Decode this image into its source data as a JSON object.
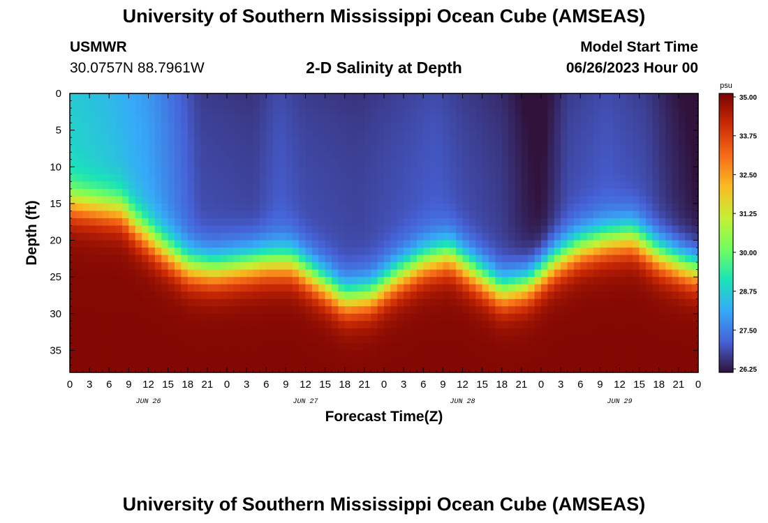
{
  "header": {
    "title": "University of Southern Mississippi Ocean Cube (AMSEAS)",
    "station": "USMWR",
    "coords": "30.0757N  88.7961W",
    "plot_title": "2-D Salinity at Depth",
    "model_label": "Model Start Time",
    "model_start": "06/26/2023 Hour 00"
  },
  "footer": {
    "title": "University of Southern Mississippi Ocean Cube (AMSEAS)"
  },
  "chart_data": {
    "type": "heatmap",
    "title": "2-D Salinity at Depth",
    "xlabel": "Forecast Time(Z)",
    "ylabel": "Depth (ft)",
    "x_range_hours": [
      0,
      96
    ],
    "y_range_ft": [
      0,
      38
    ],
    "x_tick_labels": [
      "0",
      "3",
      "6",
      "9",
      "12",
      "15",
      "18",
      "21",
      "0",
      "3",
      "6",
      "9",
      "12",
      "15",
      "18",
      "21",
      "0",
      "3",
      "6",
      "9",
      "12",
      "15",
      "18",
      "21",
      "0",
      "3",
      "6",
      "9",
      "12",
      "15",
      "18",
      "21",
      "0"
    ],
    "y_ticks": [
      0,
      5,
      10,
      15,
      20,
      25,
      30,
      35
    ],
    "day_labels": [
      {
        "label": "JUN 26",
        "hour": 12
      },
      {
        "label": "JUN 27",
        "hour": 36
      },
      {
        "label": "JUN 28",
        "hour": 60
      },
      {
        "label": "JUN 29",
        "hour": 84
      }
    ],
    "colorbar": {
      "unit": "psu",
      "min": 26.25,
      "max": 35.0,
      "ticks": [
        "35.00",
        "33.75",
        "32.50",
        "31.25",
        "30.00",
        "28.75",
        "27.50",
        "26.25"
      ],
      "colors": [
        "#30123b",
        "#4662d7",
        "#36aaf9",
        "#1ae4b6",
        "#72fe5e",
        "#c7ef34",
        "#fabb21",
        "#f66b19",
        "#cb2a04",
        "#7a0403"
      ]
    },
    "halocline_depth_ft": [
      [
        0,
        15
      ],
      [
        4,
        15.5
      ],
      [
        8,
        16
      ],
      [
        10,
        18
      ],
      [
        14,
        21
      ],
      [
        18,
        23.5
      ],
      [
        22,
        24
      ],
      [
        26,
        23.5
      ],
      [
        30,
        23
      ],
      [
        34,
        23
      ],
      [
        38,
        25.5
      ],
      [
        42,
        28
      ],
      [
        46,
        27.5
      ],
      [
        50,
        25
      ],
      [
        54,
        23
      ],
      [
        58,
        22
      ],
      [
        62,
        24.5
      ],
      [
        66,
        27
      ],
      [
        70,
        26
      ],
      [
        74,
        23
      ],
      [
        78,
        21
      ],
      [
        82,
        20
      ],
      [
        86,
        19.5
      ],
      [
        90,
        22
      ],
      [
        94,
        23.5
      ],
      [
        96,
        24
      ]
    ],
    "surface_salinity": [
      [
        0,
        29.0
      ],
      [
        6,
        28.7
      ],
      [
        12,
        28.2
      ],
      [
        16,
        27.6
      ],
      [
        20,
        27.0
      ],
      [
        28,
        26.9
      ],
      [
        32,
        27.2
      ],
      [
        36,
        27.0
      ],
      [
        44,
        26.9
      ],
      [
        52,
        27.1
      ],
      [
        56,
        27.2
      ],
      [
        60,
        27.0
      ],
      [
        66,
        26.8
      ],
      [
        70,
        26.4
      ],
      [
        72,
        26.3
      ],
      [
        76,
        27.0
      ],
      [
        82,
        27.2
      ],
      [
        88,
        27.0
      ],
      [
        92,
        26.6
      ],
      [
        96,
        26.3
      ]
    ],
    "dark_cells": [
      {
        "hour": 71,
        "depth_top_ft": 0,
        "depth_bottom_ft": 9,
        "salinity": 26.25
      },
      {
        "hour": 95,
        "depth_top_ft": 0,
        "depth_bottom_ft": 9,
        "salinity": 26.25
      }
    ]
  }
}
